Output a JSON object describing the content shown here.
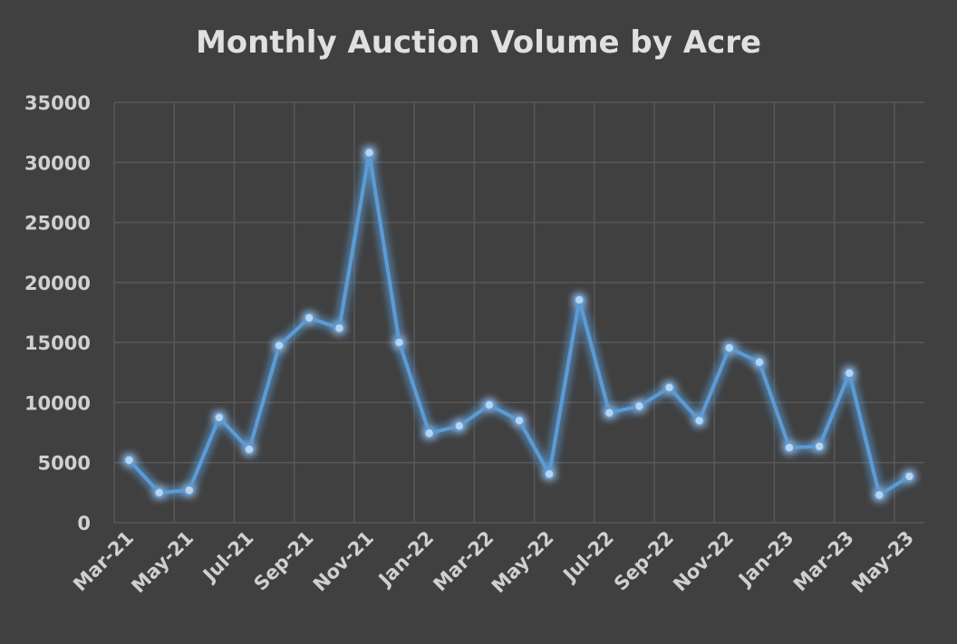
{
  "chart_data": {
    "type": "line",
    "title": "Monthly Auction Volume by Acre",
    "xlabel": "",
    "ylabel": "",
    "ylim": [
      0,
      35000
    ],
    "yticks": [
      "0",
      "5000",
      "10000",
      "15000",
      "20000",
      "25000",
      "30000",
      "35000"
    ],
    "grid": true,
    "categories": [
      "Mar-21",
      "Apr-21",
      "May-21",
      "Jun-21",
      "Jul-21",
      "Aug-21",
      "Sep-21",
      "Oct-21",
      "Nov-21",
      "Dec-21",
      "Jan-22",
      "Feb-22",
      "Mar-22",
      "Apr-22",
      "May-22",
      "Jun-22",
      "Jul-22",
      "Aug-22",
      "Sep-22",
      "Oct-22",
      "Nov-22",
      "Dec-22",
      "Jan-23",
      "Feb-23",
      "Mar-23",
      "Apr-23",
      "May-23"
    ],
    "xtick_labels": [
      "Mar-21",
      "May-21",
      "Jul-21",
      "Sep-21",
      "Nov-21",
      "Jan-22",
      "Mar-22",
      "May-22",
      "Jul-22",
      "Sep-22",
      "Nov-22",
      "Jan-23",
      "Mar-23",
      "May-23"
    ],
    "series": [
      {
        "values": [
          5200,
          2500,
          2700,
          8750,
          6100,
          14750,
          17050,
          16200,
          30800,
          15000,
          7450,
          8050,
          9800,
          8500,
          4050,
          18550,
          9150,
          9700,
          11250,
          8500,
          14550,
          13350,
          6250,
          6350,
          12450,
          2300,
          3850
        ],
        "color": "#5b9bd5"
      }
    ],
    "colors": {
      "background": "#404040",
      "grid": "#595959",
      "text": "#d0d0d0"
    }
  }
}
